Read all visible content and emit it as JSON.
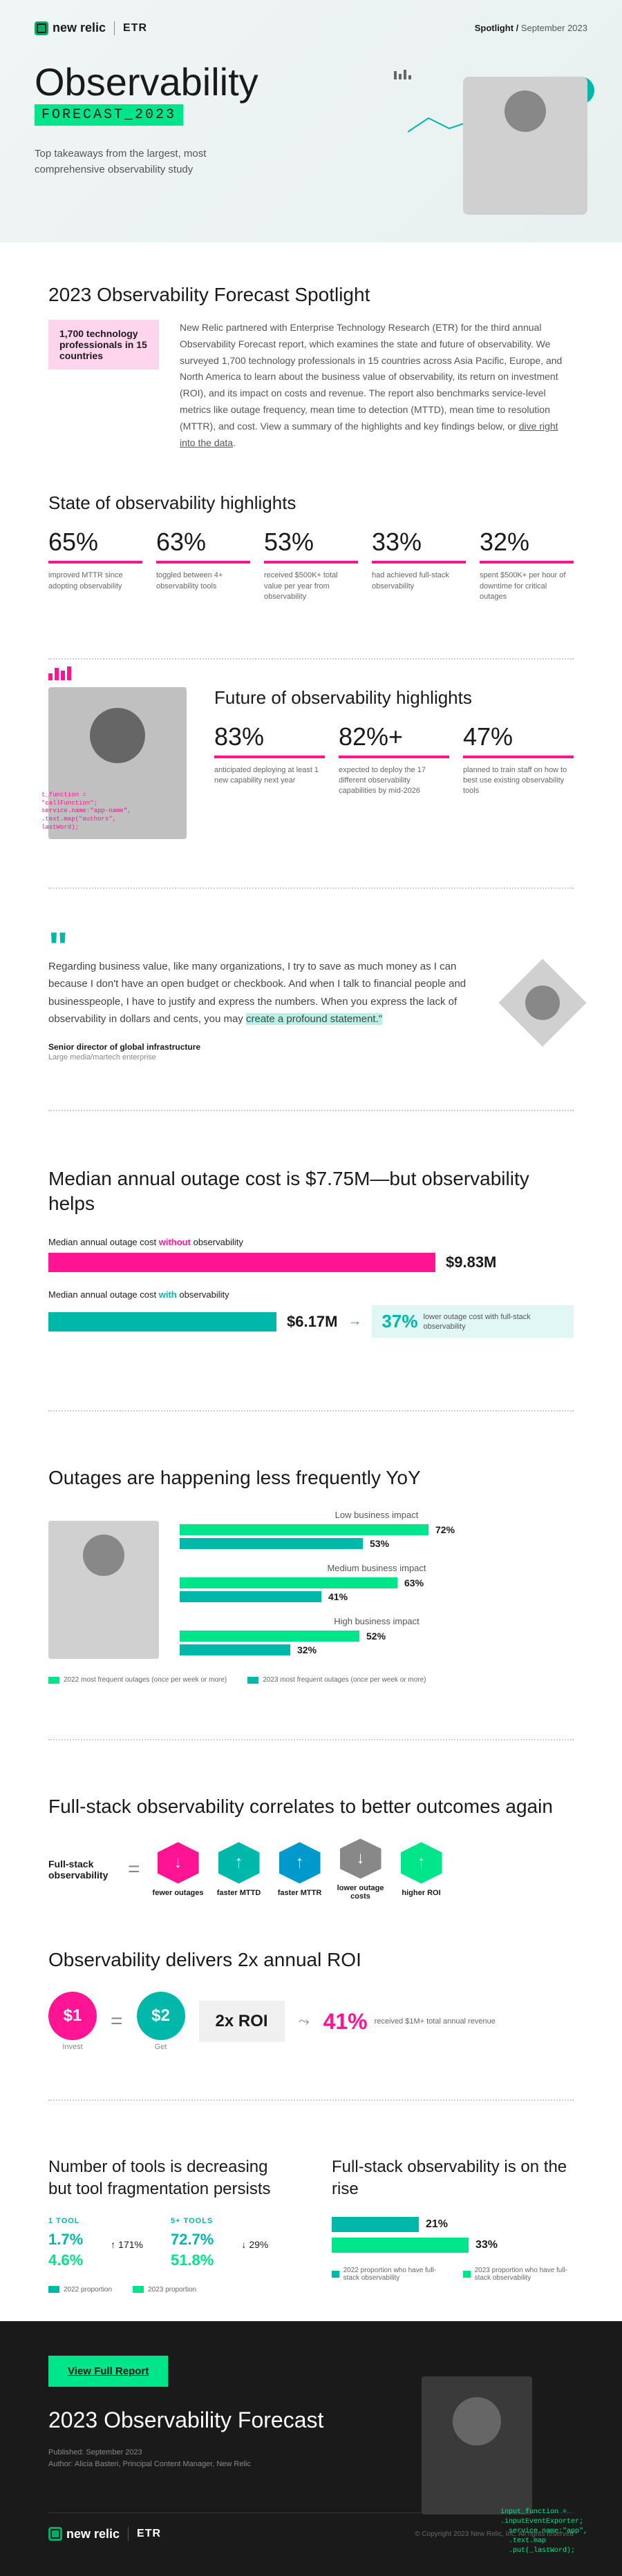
{
  "header": {
    "brand1": "new relic",
    "brand2": "ETR",
    "spotlight": "Spotlight /",
    "date": "September 2023",
    "title": "Observability",
    "forecast": "FORECAST_2023",
    "subtitle": "Top takeaways from the largest, most comprehensive observability study"
  },
  "intro": {
    "heading": "2023 Observability Forecast Spotlight",
    "callout": "1,700 technology professionals in 15 countries",
    "body": "New Relic partnered with Enterprise Technology Research (ETR) for the third annual Observability Forecast report, which examines the state and future of observability. We surveyed 1,700 technology professionals in 15 countries across Asia Pacific, Europe, and North America to learn about the business value of observability, its return on investment (ROI), and its impact on costs and revenue. The report also benchmarks service-level metrics like outage frequency, mean time to detection (MTTD), mean time to resolution (MTTR), and cost. View a summary of the highlights and key findings below, or ",
    "link": "dive right into the data"
  },
  "state": {
    "heading": "State of observability highlights",
    "stats": [
      {
        "val": "65%",
        "label": "improved MTTR since adopting observability"
      },
      {
        "val": "63%",
        "label": "toggled between 4+ observability tools"
      },
      {
        "val": "53%",
        "label": "received $500K+ total value per year from observability"
      },
      {
        "val": "33%",
        "label": "had achieved full-stack observability"
      },
      {
        "val": "32%",
        "label": "spent $500K+ per hour of downtime for critical outages"
      }
    ],
    "bar_color": "#ff1493"
  },
  "future": {
    "heading": "Future of observability highlights",
    "code": "t_function =\n\"callFunction\";\nservice.name:\"app-name\",\n.text.map(\"authors\",\nlastWord);",
    "stats": [
      {
        "val": "83%",
        "label": "anticipated deploying at least 1 new capability next year"
      },
      {
        "val": "82%+",
        "label": "expected to deploy the 17 different observability capabilities by mid-2026"
      },
      {
        "val": "47%",
        "label": "planned to train staff on how to best use existing observability tools"
      }
    ]
  },
  "quote": {
    "text": "Regarding business value, like many organizations, I try to save as much money as I can because I don't have an open budget or checkbook. And when I talk to financial people and businesspeople, I have to justify and express the numbers. When you express the lack of observability in dollars and cents, you may ",
    "highlight": "create a profound statement.\"",
    "author": "Senior director of global infrastructure",
    "role": "Large media/martech enterprise"
  },
  "outage": {
    "heading": "Median annual outage cost is $7.75M—but observability helps",
    "without_label": "Median annual outage cost",
    "without_word": "without",
    "without_label2": "observability",
    "without_val": "$9.83M",
    "without_width": 560,
    "with_label": "Median annual outage cost",
    "with_word": "with",
    "with_label2": "observability",
    "with_val": "$6.17M",
    "with_width": 350,
    "savings_pct": "37%",
    "savings_text": "lower outage cost with full-stack observability",
    "pink": "#ff1493",
    "teal": "#00b8a9"
  },
  "yoy": {
    "heading": "Outages are happening less frequently YoY",
    "groups": [
      {
        "label": "Low business impact",
        "y2022": 72,
        "y2023": 53
      },
      {
        "label": "Medium business impact",
        "y2022": 63,
        "y2023": 41
      },
      {
        "label": "High business impact",
        "y2022": 52,
        "y2023": 32
      }
    ],
    "legend_2022": "2022 most frequent outages (once per week or more)",
    "legend_2023": "2023 most frequent outages (once per week or more)",
    "color_2022": "#00e589",
    "color_2023": "#00b8a9"
  },
  "correlates": {
    "heading": "Full-stack observability correlates to better outcomes again",
    "label": "Full-stack observability",
    "hexes": [
      {
        "color": "#ff1493",
        "arrow": "↓",
        "label": "fewer outages"
      },
      {
        "color": "#00b8a9",
        "arrow": "↑",
        "label": "faster MTTD"
      },
      {
        "color": "#0099cc",
        "arrow": "↑",
        "label": "faster MTTR"
      },
      {
        "color": "#888888",
        "arrow": "↓",
        "label": "lower outage costs"
      },
      {
        "color": "#00e589",
        "arrow": "↑",
        "label": "higher ROI"
      }
    ]
  },
  "roi": {
    "heading": "Observability delivers 2x annual ROI",
    "invest": "$1",
    "invest_label": "Invest",
    "get": "$2",
    "get_label": "Get",
    "box": "2x ROI",
    "pct": "41%",
    "text": "received $1M+ total annual revenue"
  },
  "tools": {
    "heading1": "Number of tools is decreasing but tool fragmentation persists",
    "col1_header": "1 TOOL",
    "col1_v2022": "1.7%",
    "col1_v2023": "4.6%",
    "col1_change": "171%",
    "col2_header": "5+ TOOLS",
    "col2_v2022": "72.7%",
    "col2_v2023": "51.8%",
    "col2_change": "29%",
    "legend_2022": "2022 proportion",
    "legend_2023": "2023 proportion",
    "heading2": "Full-stack observability is on the rise",
    "rise_2022": 21,
    "rise_2023": 33,
    "rise_legend_2022": "2022 proportion who have full-stack observability",
    "rise_legend_2023": "2023 proportion who have full-stack observability"
  },
  "footer": {
    "btn": "View Full Report",
    "heading": "2023 Observability Forecast",
    "published": "Published: September 2023",
    "author": "Author: Alicia Basteri, Principal Content Manager, New Relic",
    "brand1": "new relic",
    "brand2": "ETR",
    "copyright": "© Copyright 2023 New Relic, Inc. All rights reserved",
    "code": "input_function =\n.inputEventExporter;\n  service.name:\"app\",\n  .text.map\n  .put(_lastWord);"
  }
}
